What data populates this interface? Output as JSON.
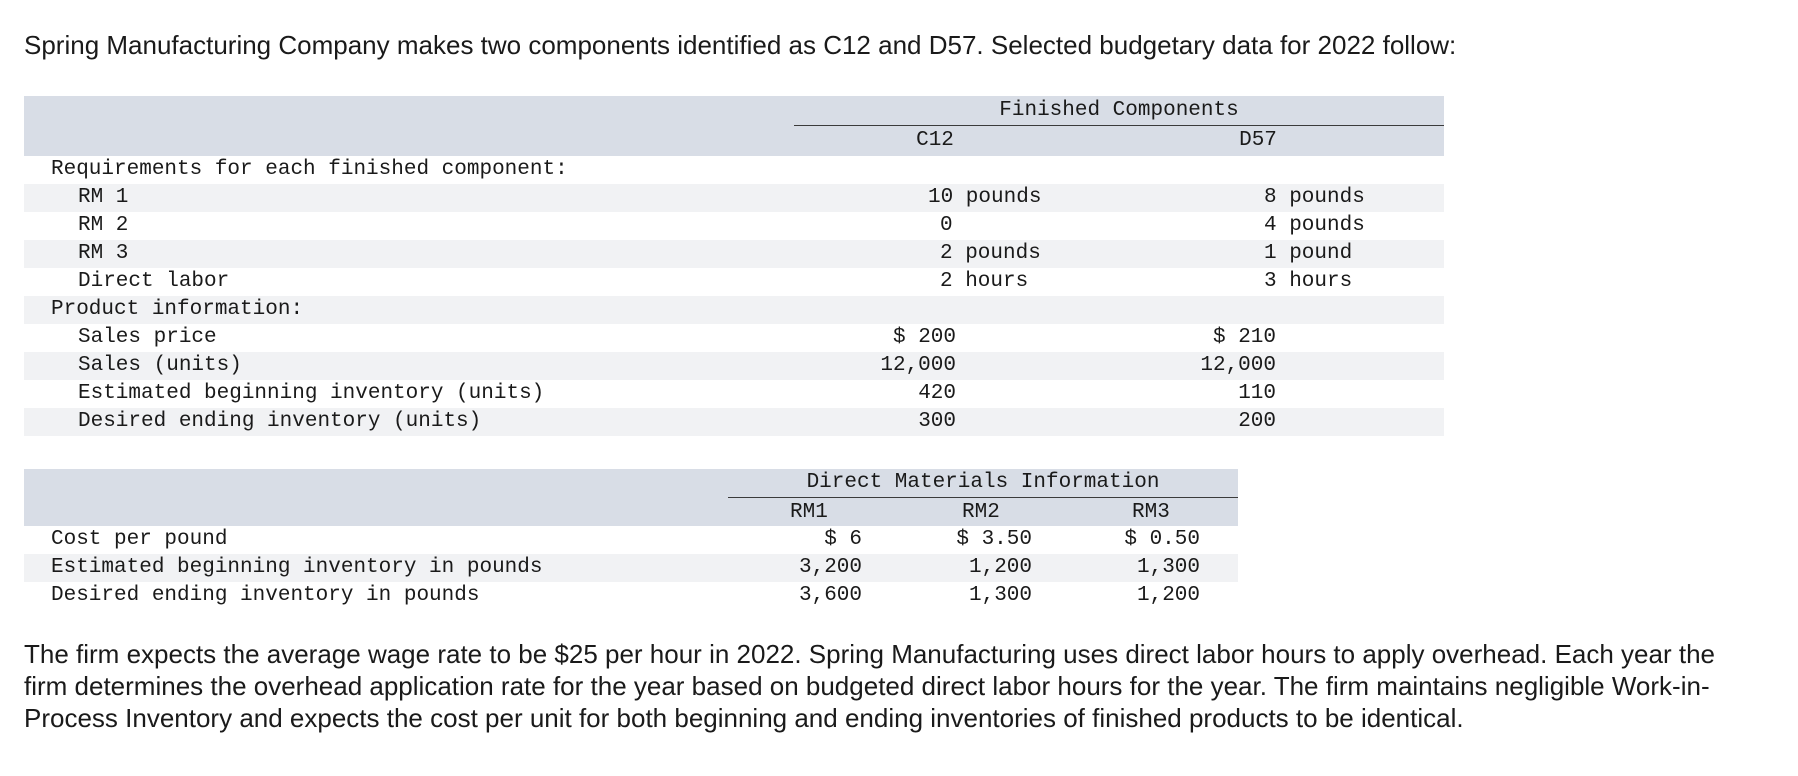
{
  "intro": "Spring Manufacturing Company makes two components identified as C12 and D57. Selected budgetary data for 2022 follow:",
  "table1": {
    "group_header": "Finished Components",
    "col_c12": "C12",
    "col_d57": "D57",
    "req_header": "Requirements for each finished component:",
    "rows_req": [
      {
        "label": "RM 1",
        "c12": "10 pounds",
        "d57": "8 pounds"
      },
      {
        "label": "RM 2",
        "c12": "0",
        "d57": "4 pounds"
      },
      {
        "label": "RM 3",
        "c12": "2 pounds",
        "d57": "1 pound"
      },
      {
        "label": "Direct labor",
        "c12": "2 hours",
        "d57": "3 hours"
      }
    ],
    "prod_header": "Product information:",
    "rows_prod": [
      {
        "label": "Sales price",
        "c12": "$ 200",
        "d57": "$ 210"
      },
      {
        "label": "Sales (units)",
        "c12": "12,000",
        "d57": "12,000"
      },
      {
        "label": "Estimated beginning inventory (units)",
        "c12": "420",
        "d57": "110"
      },
      {
        "label": "Desired ending inventory (units)",
        "c12": "300",
        "d57": "200"
      }
    ]
  },
  "table2": {
    "group_header": "Direct Materials Information",
    "col_rm1": "RM1",
    "col_rm2": "RM2",
    "col_rm3": "RM3",
    "rows": [
      {
        "label": "Cost per pound",
        "rm1": "$ 6",
        "rm2": "$ 3.50",
        "rm3": "$ 0.50"
      },
      {
        "label": "Estimated beginning inventory in pounds",
        "rm1": "3,200",
        "rm2": "1,200",
        "rm3": "1,300"
      },
      {
        "label": "Desired ending inventory in pounds",
        "rm1": "3,600",
        "rm2": "1,300",
        "rm3": "1,200"
      }
    ]
  },
  "outro": "The firm expects the average wage rate to be $25 per hour in 2022. Spring Manufacturing uses direct labor hours to apply overhead. Each year the firm determines the overhead application rate for the year based on budgeted direct labor hours for the year. The firm maintains negligible Work-in-Process Inventory and expects the cost per unit for both beginning and ending inventories of finished products to be identical."
}
